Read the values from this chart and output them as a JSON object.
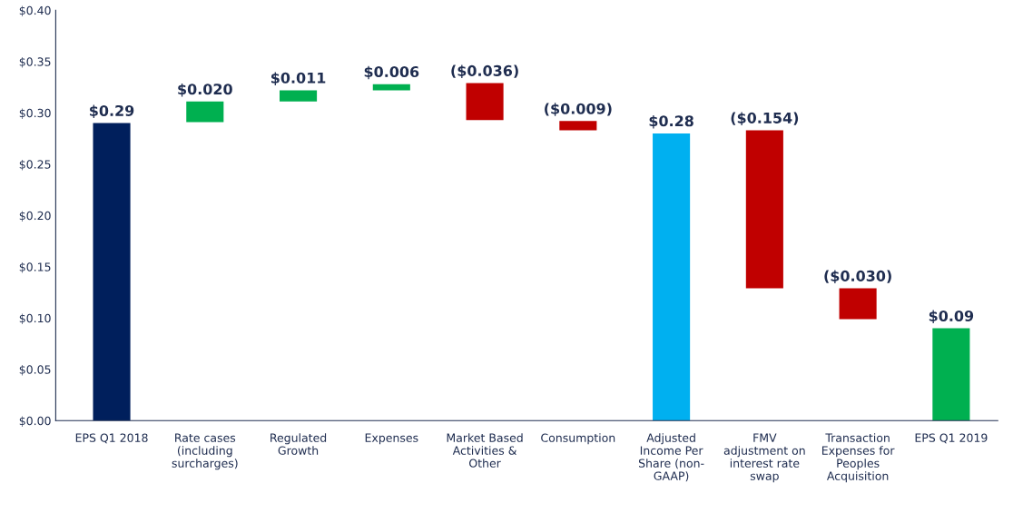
{
  "chart_data": {
    "type": "bar",
    "categories": [
      "EPS Q1 2018",
      "Rate cases\n(including\nsurcharges)",
      "Regulated\nGrowth",
      "Expenses",
      "Market Based\nActivities &\nOther",
      "Consumption",
      "Adjusted\nIncome Per\nShare (non-\nGAAP)",
      "FMV\nadjustment on\ninterest rate\nswap",
      "Transaction\nExpenses for\nPeoples\nAcquisition",
      "EPS Q1 2019"
    ],
    "values": [
      0.29,
      0.02,
      0.011,
      0.006,
      -0.036,
      -0.009,
      0.28,
      -0.154,
      -0.03,
      0.09
    ],
    "base": [
      0,
      0.291,
      0.311,
      0.322,
      0.329,
      0.292,
      0,
      0.283,
      0.129,
      0
    ],
    "colors": [
      "#001f5c",
      "#00b050",
      "#00b050",
      "#00b050",
      "#c00000",
      "#c00000",
      "#00b0f0",
      "#c00000",
      "#c00000",
      "#00b050"
    ],
    "value_labels": [
      "$0.29",
      "$0.020",
      "$0.011",
      "$0.006",
      "($0.036)",
      "($0.009)",
      "$0.28",
      "($0.154)",
      "($0.030)",
      "$0.09"
    ],
    "ylim": [
      0,
      0.4
    ],
    "yticks": [
      {
        "value": 0,
        "label": "$0.00"
      },
      {
        "value": 0.05,
        "label": "$0.05"
      },
      {
        "value": 0.1,
        "label": "$0.10"
      },
      {
        "value": 0.15,
        "label": "$0.15"
      },
      {
        "value": 0.2,
        "label": "$0.20"
      },
      {
        "value": 0.25,
        "label": "$0.25"
      },
      {
        "value": 0.3,
        "label": "$0.30"
      },
      {
        "value": 0.35,
        "label": "$0.35"
      },
      {
        "value": 0.4,
        "label": "$0.40"
      }
    ],
    "grid": false,
    "legend": false
  }
}
